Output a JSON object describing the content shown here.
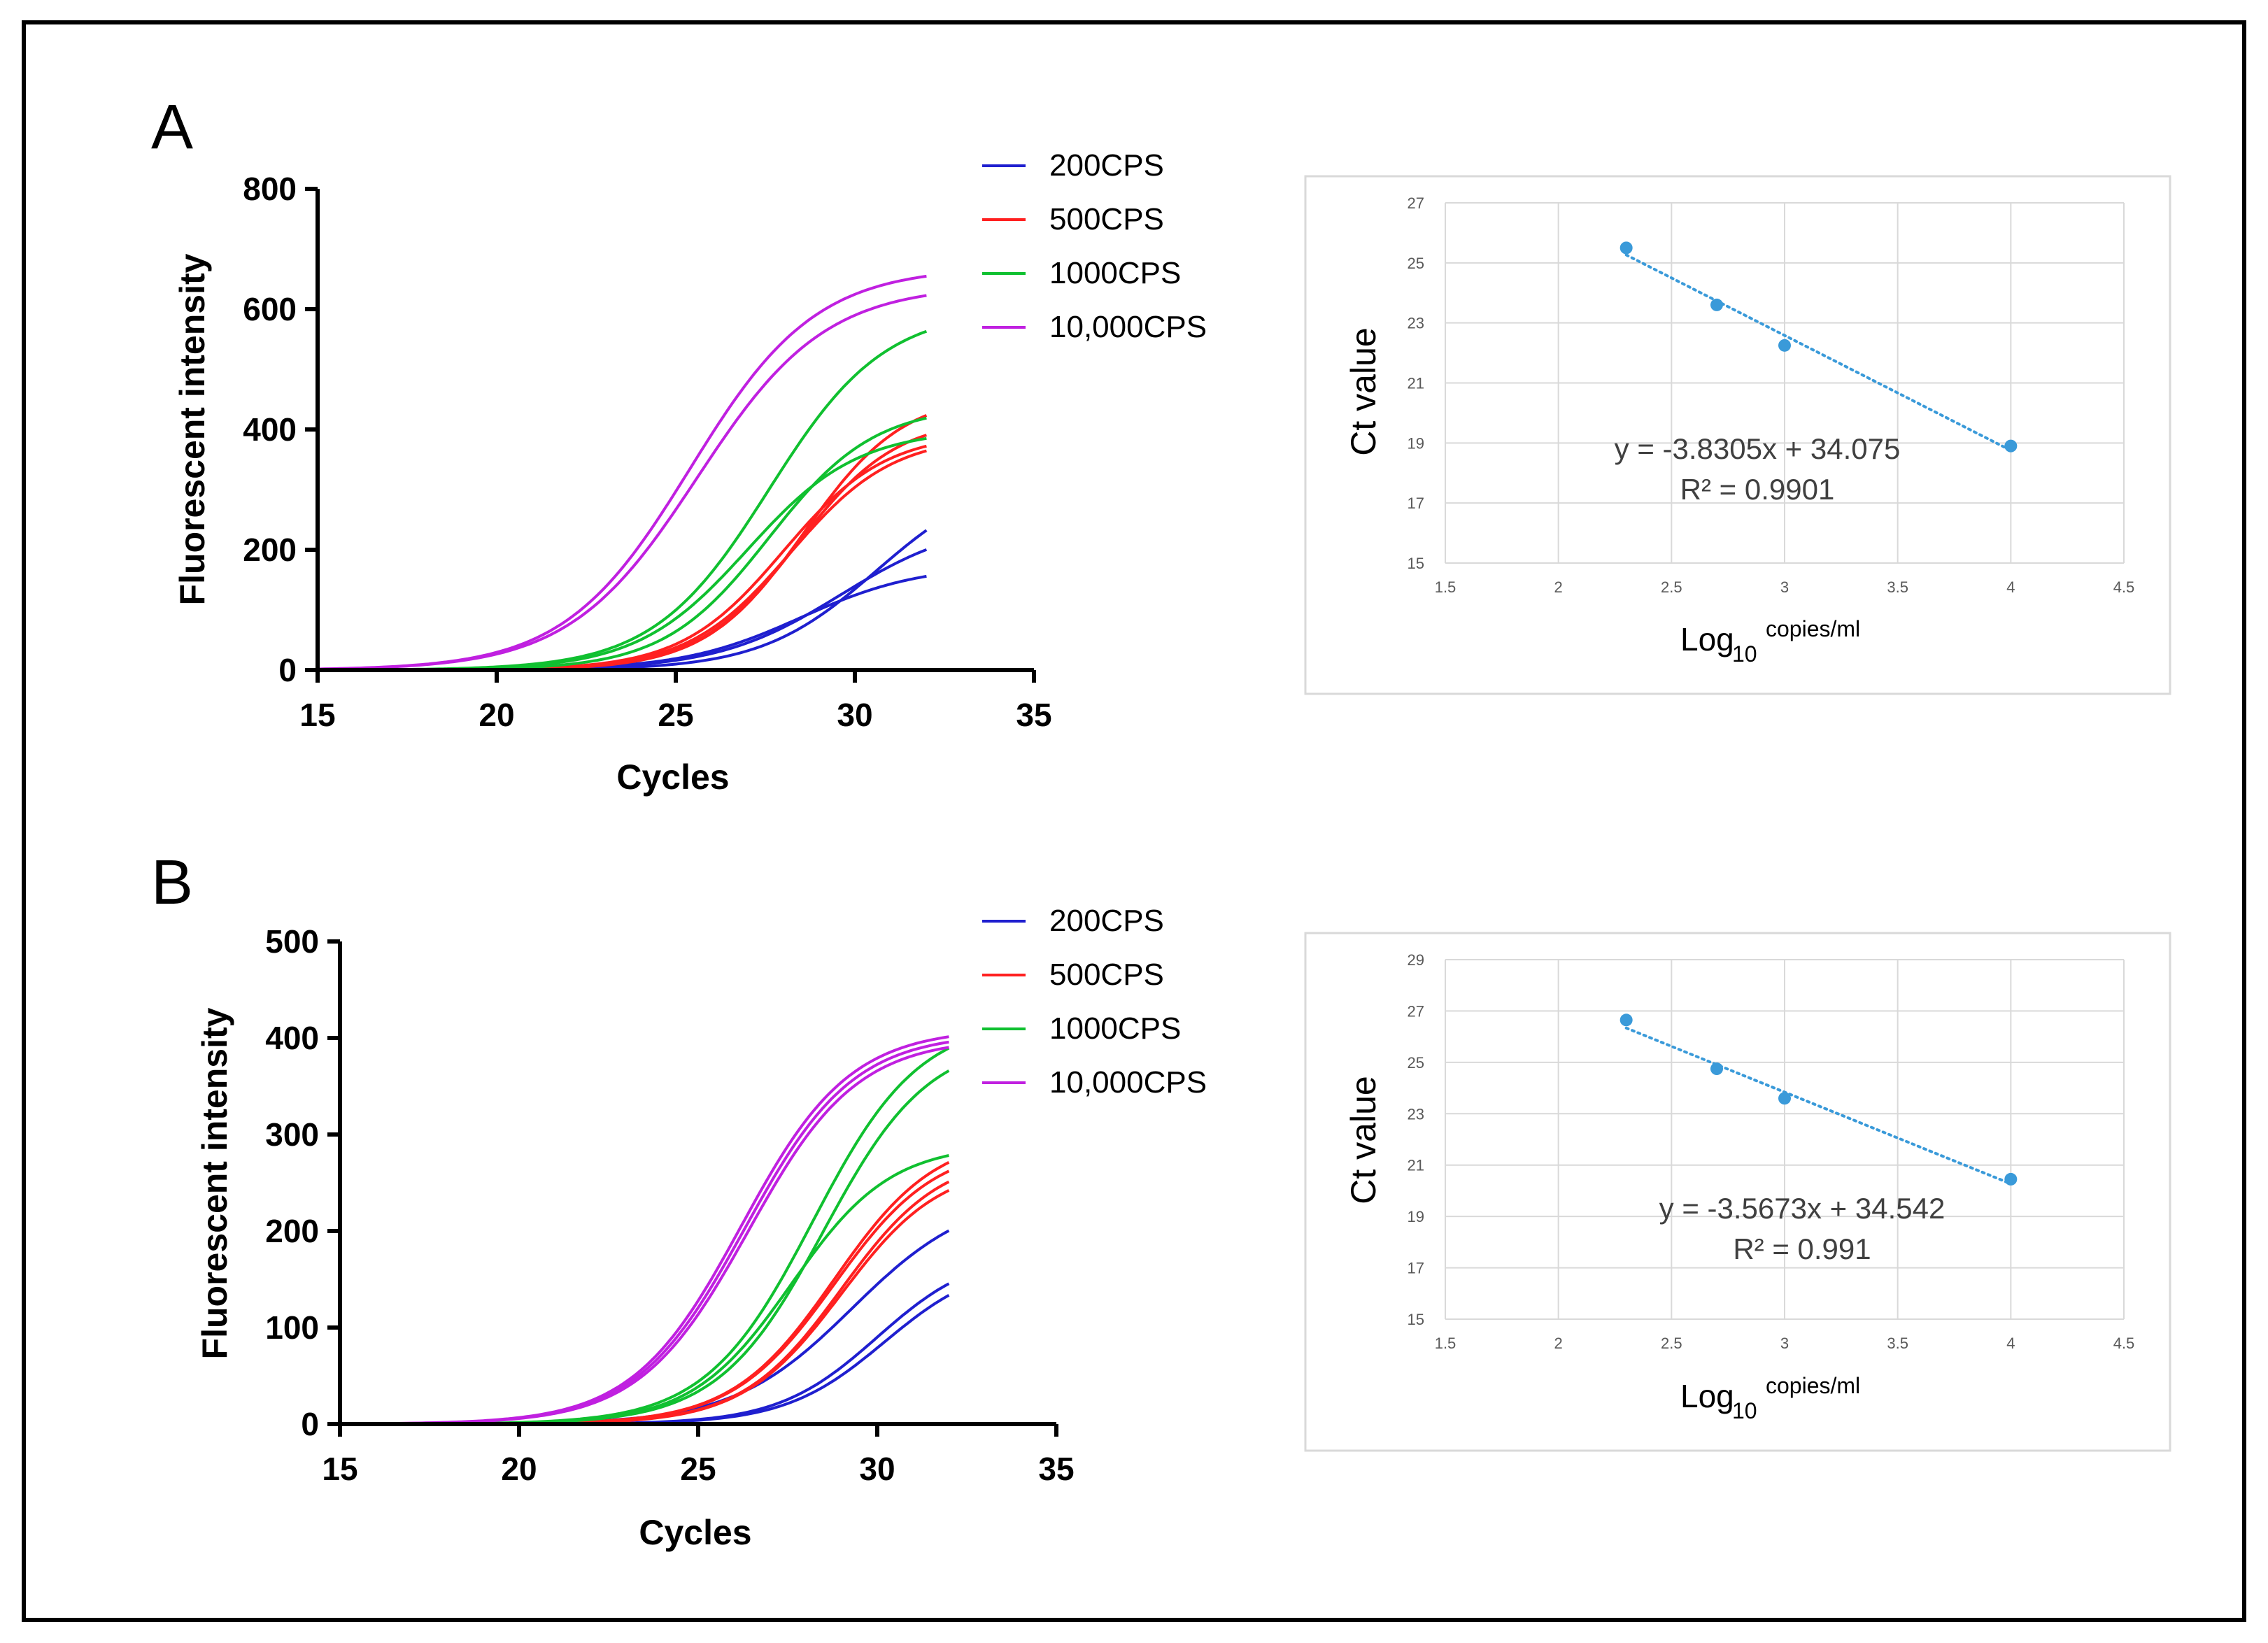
{
  "panels": [
    {
      "id": "A",
      "label": "A"
    },
    {
      "id": "B",
      "label": "B"
    }
  ],
  "legend_colors": {
    "200CPS": "#1f1fcf",
    "500CPS": "#ff2020",
    "1000CPS": "#10c030",
    "10,000CPS": "#c020e0"
  },
  "regression_color": "#3a9ad9",
  "chart_data": [
    {
      "panel": "A",
      "type": "line",
      "title": "",
      "xlabel": "Cycles",
      "ylabel": "Fluorescent intensity",
      "xlim": [
        15,
        35
      ],
      "ylim": [
        0,
        800
      ],
      "xticks": [
        "15",
        "20",
        "25",
        "30",
        "35"
      ],
      "yticks": [
        "0",
        "200",
        "400",
        "600",
        "800"
      ],
      "legend": [
        "200CPS",
        "500CPS",
        "1000CPS",
        "10,000CPS"
      ],
      "series": [
        {
          "name": "200CPS",
          "max": 250,
          "mid": 29.6,
          "k": 0.58
        },
        {
          "name": "200CPS",
          "max": 330,
          "mid": 30.6,
          "k": 0.62
        },
        {
          "name": "200CPS",
          "max": 175,
          "mid": 28.5,
          "k": 0.6
        },
        {
          "name": "500CPS",
          "max": 460,
          "mid": 28.6,
          "k": 0.72
        },
        {
          "name": "500CPS",
          "max": 420,
          "mid": 28.4,
          "k": 0.72
        },
        {
          "name": "500CPS",
          "max": 395,
          "mid": 28.0,
          "k": 0.7
        },
        {
          "name": "500CPS",
          "max": 390,
          "mid": 28.2,
          "k": 0.7
        },
        {
          "name": "1000CPS",
          "max": 600,
          "mid": 27.6,
          "k": 0.62
        },
        {
          "name": "1000CPS",
          "max": 440,
          "mid": 27.6,
          "k": 0.68
        },
        {
          "name": "1000CPS",
          "max": 400,
          "mid": 27.0,
          "k": 0.65
        },
        {
          "name": "10,000CPS",
          "max": 670,
          "mid": 25.4,
          "k": 0.57
        },
        {
          "name": "10,000CPS",
          "max": 640,
          "mid": 25.6,
          "k": 0.56
        }
      ]
    },
    {
      "panel": "A",
      "type": "scatter",
      "xlabel_main": "Log",
      "xlabel_sub": "10",
      "xlabel_sup": "copies/ml",
      "ylabel": "Ct value",
      "xlim": [
        1.5,
        4.5
      ],
      "ylim": [
        15,
        27
      ],
      "xticks": [
        "1.5",
        "2",
        "2.5",
        "3",
        "3.5",
        "4",
        "4.5"
      ],
      "yticks": [
        "15",
        "17",
        "19",
        "21",
        "23",
        "25",
        "27"
      ],
      "x": [
        2.3,
        2.7,
        3.0,
        4.0
      ],
      "y": [
        25.5,
        23.6,
        22.25,
        18.9
      ],
      "fit_slope": -3.8305,
      "fit_intercept": 34.075,
      "equation": "y = -3.8305x + 34.075",
      "r2": "R² = 0.9901"
    },
    {
      "panel": "B",
      "type": "line",
      "title": "",
      "xlabel": "Cycles",
      "ylabel": "Fluorescent intensity",
      "xlim": [
        15,
        35
      ],
      "ylim": [
        0,
        500
      ],
      "xticks": [
        "15",
        "20",
        "25",
        "30",
        "35"
      ],
      "yticks": [
        "0",
        "100",
        "200",
        "300",
        "400",
        "500"
      ],
      "legend": [
        "200CPS",
        "500CPS",
        "1000CPS",
        "10,000CPS"
      ],
      "series": [
        {
          "name": "200CPS",
          "max": 240,
          "mid": 29.3,
          "k": 0.6
        },
        {
          "name": "200CPS",
          "max": 180,
          "mid": 30.0,
          "k": 0.72
        },
        {
          "name": "200CPS",
          "max": 170,
          "mid": 30.2,
          "k": 0.72
        },
        {
          "name": "500CPS",
          "max": 300,
          "mid": 28.8,
          "k": 0.7
        },
        {
          "name": "500CPS",
          "max": 290,
          "mid": 28.8,
          "k": 0.7
        },
        {
          "name": "500CPS",
          "max": 280,
          "mid": 29.0,
          "k": 0.72
        },
        {
          "name": "500CPS",
          "max": 270,
          "mid": 29.0,
          "k": 0.72
        },
        {
          "name": "1000CPS",
          "max": 420,
          "mid": 28.2,
          "k": 0.67
        },
        {
          "name": "1000CPS",
          "max": 400,
          "mid": 28.5,
          "k": 0.68
        },
        {
          "name": "1000CPS",
          "max": 290,
          "mid": 27.6,
          "k": 0.72
        },
        {
          "name": "10,000CPS",
          "max": 410,
          "mid": 26.2,
          "k": 0.66
        },
        {
          "name": "10,000CPS",
          "max": 405,
          "mid": 26.3,
          "k": 0.66
        },
        {
          "name": "10,000CPS",
          "max": 400,
          "mid": 26.4,
          "k": 0.66
        }
      ]
    },
    {
      "panel": "B",
      "type": "scatter",
      "xlabel_main": "Log",
      "xlabel_sub": "10",
      "xlabel_sup": "copies/ml",
      "ylabel": "Ct value",
      "xlim": [
        1.5,
        4.5
      ],
      "ylim": [
        15,
        29
      ],
      "xticks": [
        "1.5",
        "2",
        "2.5",
        "3",
        "3.5",
        "4",
        "4.5"
      ],
      "yticks": [
        "15",
        "17",
        "19",
        "21",
        "23",
        "25",
        "27",
        "29"
      ],
      "x": [
        2.3,
        2.7,
        3.0,
        4.0
      ],
      "y": [
        26.65,
        24.75,
        23.6,
        20.45
      ],
      "fit_slope": -3.5673,
      "fit_intercept": 34.542,
      "equation": "y = -3.5673x + 34.542",
      "r2": "R² = 0.991"
    }
  ]
}
